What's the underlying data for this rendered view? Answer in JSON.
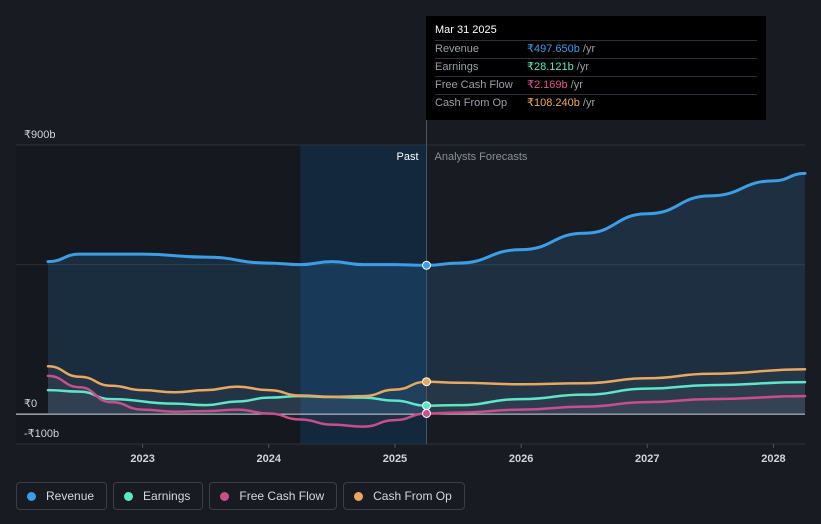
{
  "tooltip": {
    "date": "Mar 31 2025",
    "rows": [
      {
        "label": "Revenue",
        "value": "₹497.650b",
        "unit": "/yr",
        "color": "#3b9ee6"
      },
      {
        "label": "Earnings",
        "value": "₹28.121b",
        "unit": "/yr",
        "color": "#5ee6c8"
      },
      {
        "label": "Free Cash Flow",
        "value": "₹2.169b",
        "unit": "/yr",
        "color": "#e0558f"
      },
      {
        "label": "Cash From Op",
        "value": "₹108.240b",
        "unit": "/yr",
        "color": "#f0ac5c"
      }
    ]
  },
  "legend": [
    {
      "label": "Revenue",
      "color": "#3b9ee6"
    },
    {
      "label": "Earnings",
      "color": "#5ee6c8"
    },
    {
      "label": "Free Cash Flow",
      "color": "#c84e8c"
    },
    {
      "label": "Cash From Op",
      "color": "#e8a85f"
    }
  ],
  "chart_data": {
    "type": "line",
    "title": "",
    "xlabel": "",
    "ylabel": "",
    "y_tick_labels": [
      {
        "value": 900,
        "label": "₹900b"
      },
      {
        "value": 0,
        "label": "₹0"
      },
      {
        "value": -100,
        "label": "-₹100b"
      }
    ],
    "ylim": [
      -100,
      900
    ],
    "xlim": [
      2022.25,
      2028.25
    ],
    "x_tick_labels": [
      {
        "value": 2023,
        "label": "2023"
      },
      {
        "value": 2024,
        "label": "2024"
      },
      {
        "value": 2025,
        "label": "2025"
      },
      {
        "value": 2026,
        "label": "2026"
      },
      {
        "value": 2027,
        "label": "2027"
      },
      {
        "value": 2028,
        "label": "2028"
      }
    ],
    "past_label": "Past",
    "forecast_label": "Analysts Forecasts",
    "highlight_range": [
      2024.25,
      2025.25
    ],
    "divider_x": 2025.25,
    "series": [
      {
        "name": "Revenue",
        "color": "#3b9ee6",
        "fill": true,
        "points": [
          [
            2022.25,
            510
          ],
          [
            2022.5,
            535
          ],
          [
            2023.0,
            535
          ],
          [
            2023.5,
            525
          ],
          [
            2024.0,
            505
          ],
          [
            2024.25,
            500
          ],
          [
            2024.5,
            510
          ],
          [
            2024.75,
            500
          ],
          [
            2025.0,
            500
          ],
          [
            2025.25,
            497.65
          ],
          [
            2025.5,
            505
          ],
          [
            2026.0,
            550
          ],
          [
            2026.5,
            605
          ],
          [
            2027.0,
            670
          ],
          [
            2027.5,
            730
          ],
          [
            2028.0,
            780
          ],
          [
            2028.25,
            805
          ]
        ]
      },
      {
        "name": "Earnings",
        "color": "#5ee6c8",
        "fill": false,
        "points": [
          [
            2022.25,
            80
          ],
          [
            2022.5,
            75
          ],
          [
            2022.75,
            50
          ],
          [
            2023.25,
            35
          ],
          [
            2023.5,
            30
          ],
          [
            2023.75,
            42
          ],
          [
            2024.0,
            55
          ],
          [
            2024.25,
            60
          ],
          [
            2024.5,
            57
          ],
          [
            2024.75,
            55
          ],
          [
            2025.0,
            45
          ],
          [
            2025.25,
            28.12
          ],
          [
            2025.5,
            30
          ],
          [
            2026.0,
            50
          ],
          [
            2026.5,
            65
          ],
          [
            2027.0,
            85
          ],
          [
            2027.5,
            97
          ],
          [
            2028.25,
            107
          ]
        ]
      },
      {
        "name": "Free Cash Flow",
        "color": "#c84e8c",
        "fill": false,
        "points": [
          [
            2022.25,
            128
          ],
          [
            2022.5,
            90
          ],
          [
            2022.75,
            40
          ],
          [
            2023.0,
            15
          ],
          [
            2023.25,
            8
          ],
          [
            2023.5,
            10
          ],
          [
            2023.75,
            15
          ],
          [
            2024.0,
            2
          ],
          [
            2024.25,
            -18
          ],
          [
            2024.5,
            -35
          ],
          [
            2024.75,
            -42
          ],
          [
            2025.0,
            -20
          ],
          [
            2025.25,
            2.17
          ],
          [
            2025.5,
            5
          ],
          [
            2026.0,
            15
          ],
          [
            2026.5,
            25
          ],
          [
            2027.0,
            40
          ],
          [
            2027.5,
            50
          ],
          [
            2028.25,
            60
          ]
        ]
      },
      {
        "name": "Cash From Op",
        "color": "#e8a85f",
        "fill": false,
        "points": [
          [
            2022.25,
            160
          ],
          [
            2022.5,
            125
          ],
          [
            2022.75,
            95
          ],
          [
            2023.0,
            80
          ],
          [
            2023.25,
            73
          ],
          [
            2023.5,
            80
          ],
          [
            2023.75,
            92
          ],
          [
            2024.0,
            80
          ],
          [
            2024.25,
            62
          ],
          [
            2024.5,
            58
          ],
          [
            2024.75,
            60
          ],
          [
            2025.0,
            82
          ],
          [
            2025.25,
            108.24
          ],
          [
            2025.5,
            105
          ],
          [
            2026.0,
            100
          ],
          [
            2026.5,
            103
          ],
          [
            2027.0,
            120
          ],
          [
            2027.5,
            135
          ],
          [
            2028.25,
            150
          ]
        ]
      }
    ],
    "markers_x": 2025.25
  }
}
